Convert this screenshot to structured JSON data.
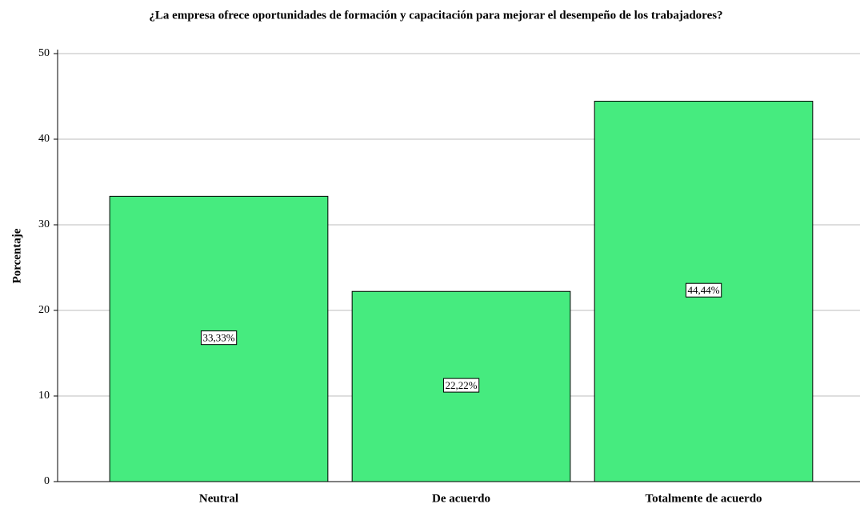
{
  "chart_data": {
    "type": "bar",
    "title": "¿La empresa ofrece oportunidades de formación y capacitación para mejorar el desempeño de los trabajadores?",
    "y_label": "Porcentaje",
    "categories": [
      "Neutral",
      "De acuerdo",
      "Totalmente de acuerdo"
    ],
    "values": [
      33.33,
      22.22,
      44.44
    ],
    "value_labels": [
      "33,33%",
      "22,22%",
      "44,44%"
    ],
    "color": "#46eb7f",
    "ylim": [
      0,
      50
    ],
    "yticks": [
      0,
      10,
      20,
      30,
      40,
      50
    ],
    "grid": true
  }
}
